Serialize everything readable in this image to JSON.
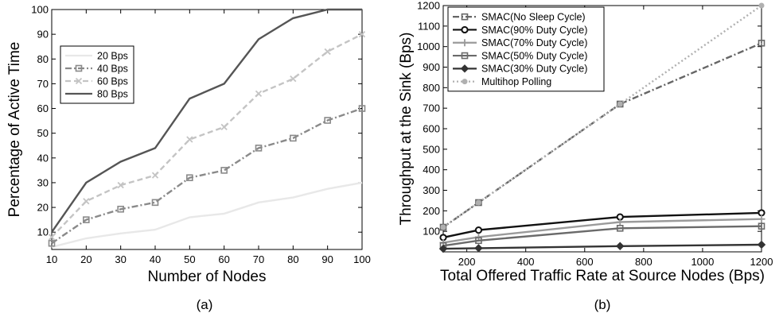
{
  "chart_data": [
    {
      "type": "line",
      "panel_label": "(a)",
      "xlabel": "Number of Nodes",
      "ylabel": "Percentage of Active Time",
      "xlim": [
        10,
        100
      ],
      "ylim": [
        3,
        100
      ],
      "xticks": [
        10,
        20,
        30,
        40,
        50,
        60,
        70,
        80,
        90,
        100
      ],
      "yticks": [
        10,
        20,
        30,
        40,
        50,
        60,
        70,
        80,
        90,
        100
      ],
      "legend_position": "upper-left",
      "x": [
        10,
        20,
        30,
        40,
        50,
        60,
        70,
        80,
        90,
        100
      ],
      "series": [
        {
          "name": "20 Bps",
          "color": "#e8e8e8",
          "dash": "solid",
          "marker": "none",
          "values": [
            4,
            7.5,
            9.5,
            11,
            16,
            17.5,
            22,
            24,
            27.5,
            30
          ]
        },
        {
          "name": "40 Bps",
          "color": "#8a8a8a",
          "dash": "dashdot",
          "marker": "square",
          "values": [
            5.5,
            15,
            19.3,
            22,
            32,
            35,
            44,
            48,
            55.2,
            60
          ]
        },
        {
          "name": "60 Bps",
          "color": "#c4c4c4",
          "dash": "dash",
          "marker": "x",
          "values": [
            8,
            22.5,
            29,
            33,
            47.5,
            52.5,
            66,
            72,
            83,
            90
          ]
        },
        {
          "name": "80 Bps",
          "color": "#555555",
          "dash": "solid",
          "marker": "none",
          "values": [
            10,
            30,
            38.5,
            44,
            64,
            70,
            88,
            96.5,
            100,
            100
          ]
        }
      ]
    },
    {
      "type": "line",
      "panel_label": "(b)",
      "xlabel": "Total Offered Traffic Rate at Source Nodes (Bps)",
      "ylabel": "Throughput at the Sink (Bps)",
      "xlim": [
        120,
        1200
      ],
      "ylim": [
        0,
        1200
      ],
      "xticks": [
        200,
        400,
        600,
        800,
        1000,
        1200
      ],
      "yticks": [
        100,
        200,
        300,
        400,
        500,
        600,
        700,
        800,
        900,
        1000,
        1100,
        1200
      ],
      "legend_position": "upper-left",
      "x": [
        120,
        240,
        720,
        1200
      ],
      "series": [
        {
          "name": "SMAC(No Sleep Cycle)",
          "color": "#666666",
          "dash": "dashdot",
          "marker": "square",
          "values": [
            120,
            240,
            720,
            1017
          ]
        },
        {
          "name": "SMAC(90% Duty Cycle)",
          "color": "#111111",
          "dash": "solid",
          "marker": "circle",
          "values": [
            70,
            106,
            170,
            190
          ]
        },
        {
          "name": "SMAC(70% Duty Cycle)",
          "color": "#9a9a9a",
          "dash": "solid",
          "marker": "plus",
          "values": [
            45,
            72,
            145,
            160
          ]
        },
        {
          "name": "SMAC(50% Duty Cycle)",
          "color": "#6a6a6a",
          "dash": "solid",
          "marker": "square",
          "values": [
            30,
            55,
            115,
            125
          ]
        },
        {
          "name": "SMAC(30% Duty Cycle)",
          "color": "#333333",
          "dash": "solid",
          "marker": "diamond",
          "values": [
            15,
            18,
            28,
            35
          ]
        },
        {
          "name": "Multihop Polling",
          "color": "#b0b0b0",
          "dash": "dot",
          "marker": "circle-small",
          "values": [
            120,
            240,
            720,
            1200
          ]
        }
      ]
    }
  ]
}
